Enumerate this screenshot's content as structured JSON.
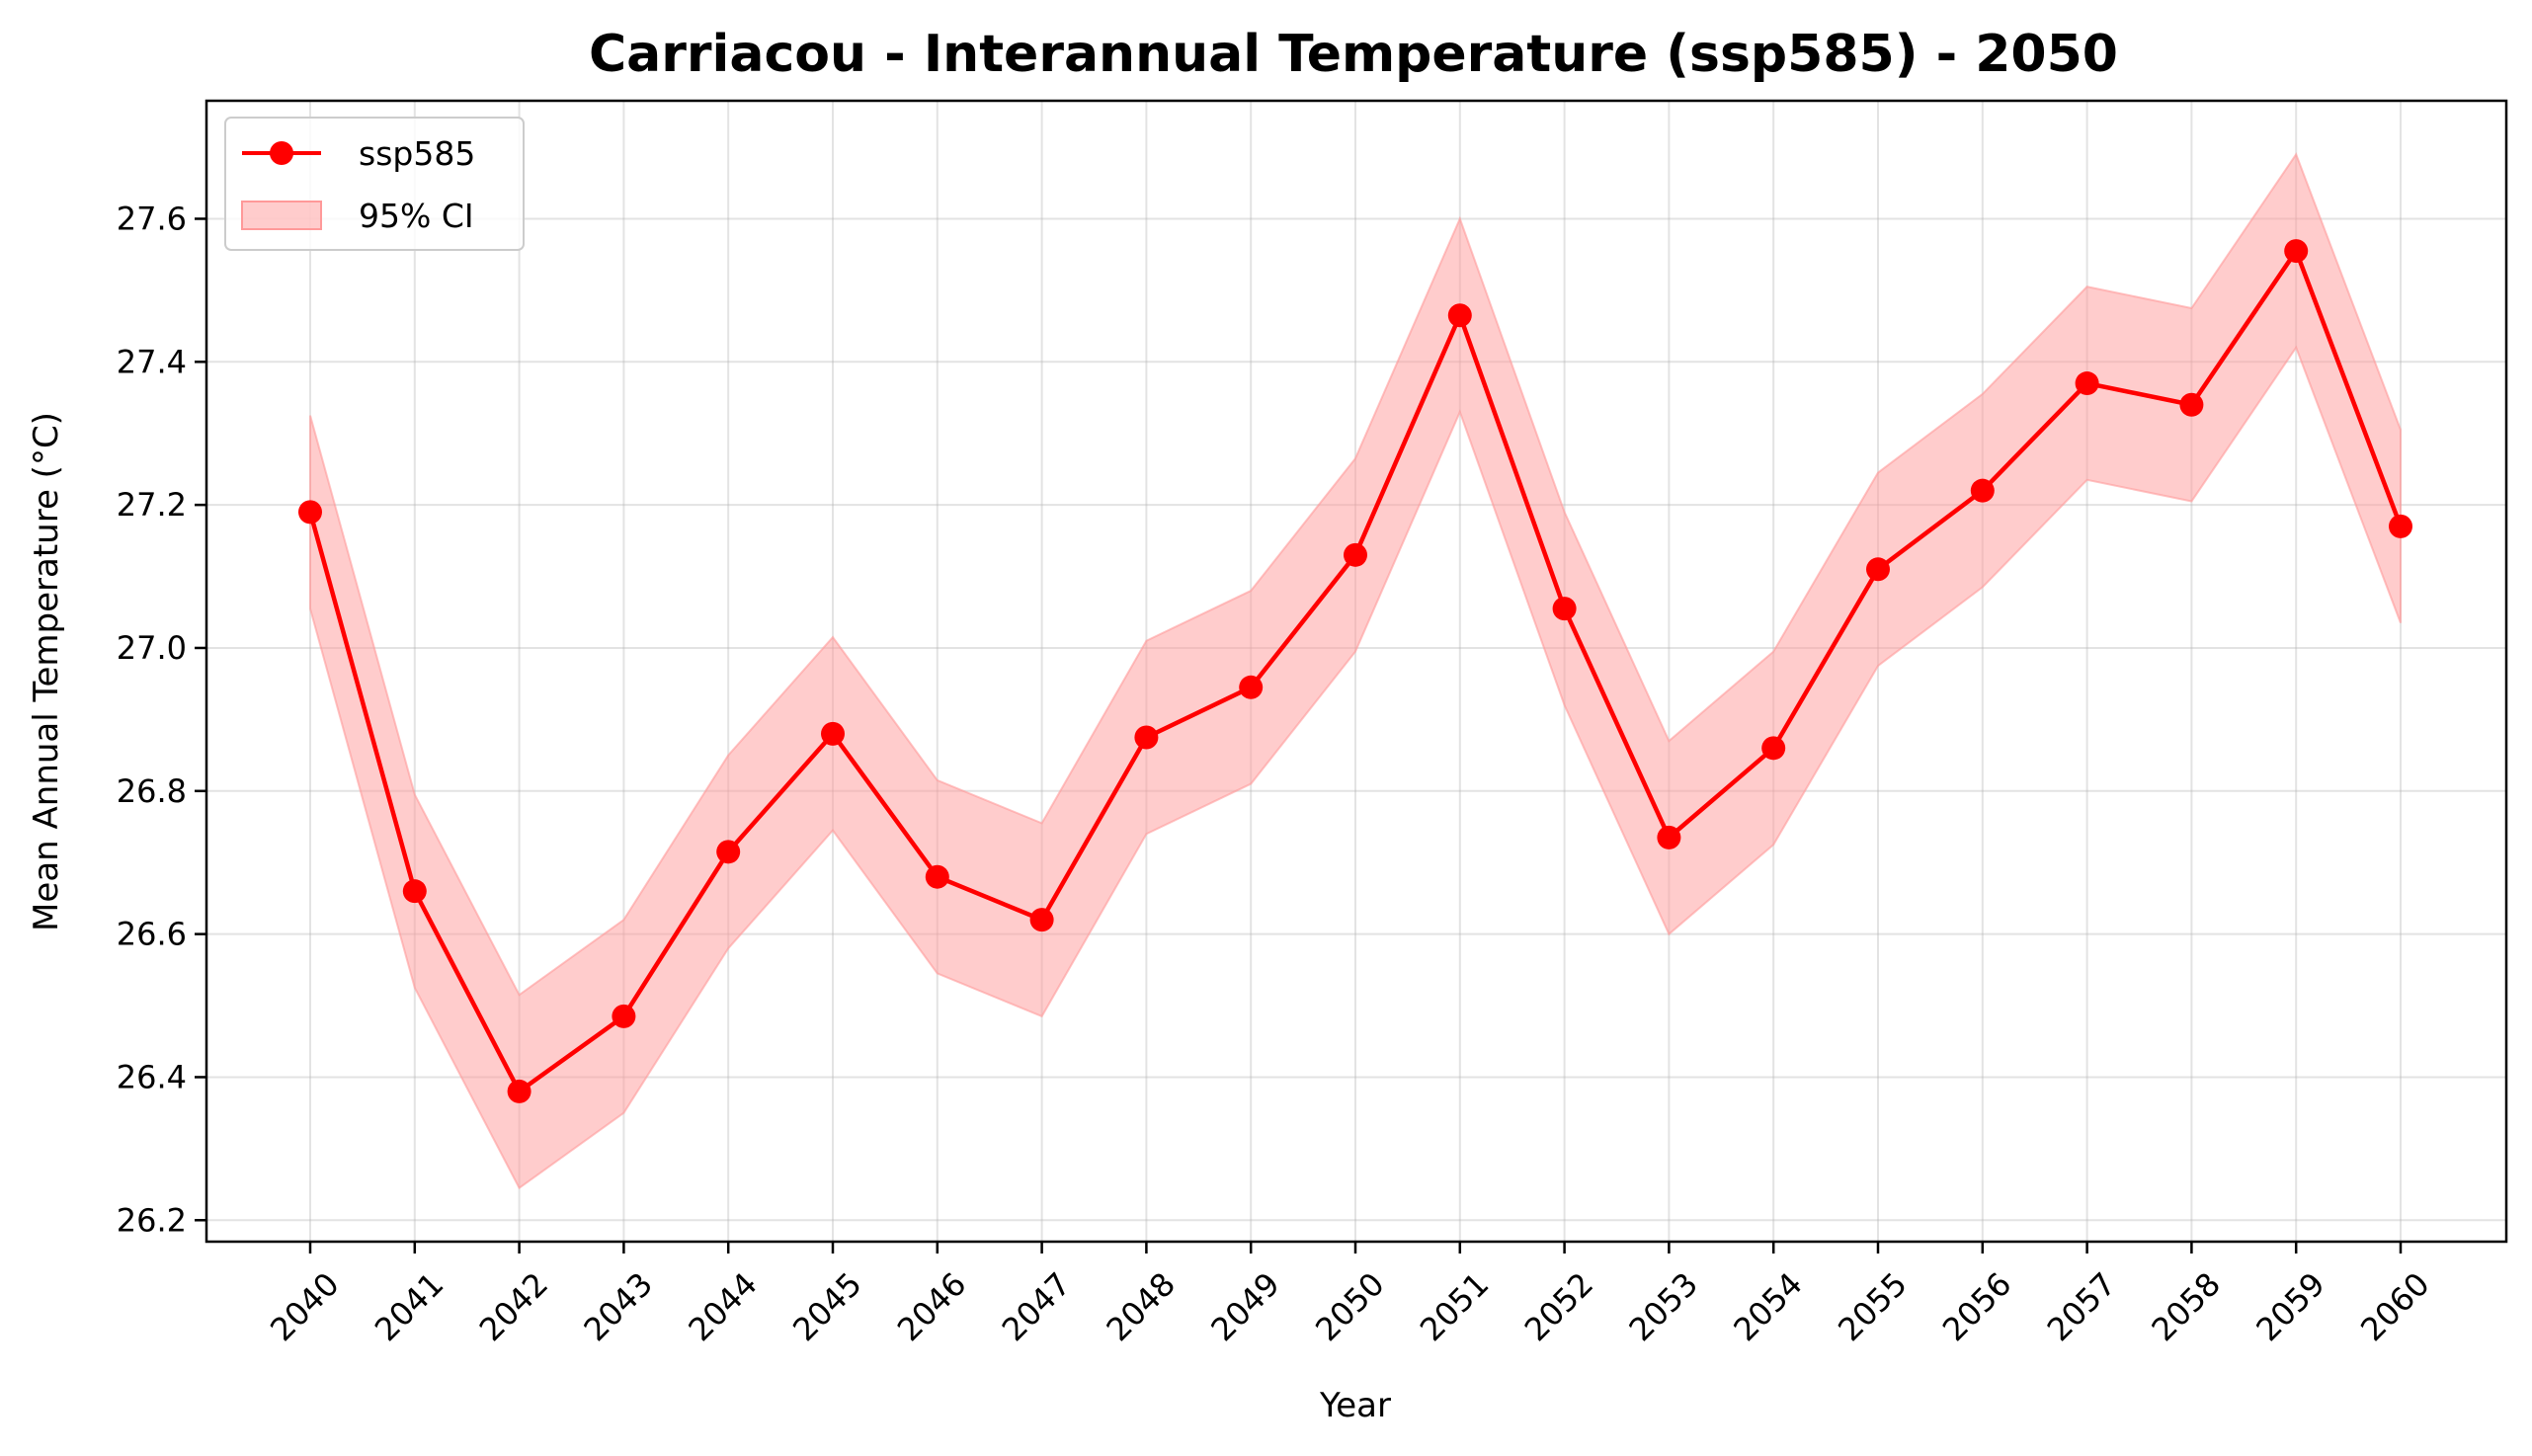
{
  "chart_data": {
    "type": "line",
    "title": "Carriacou - Interannual Temperature (ssp585) - 2050",
    "xlabel": "Year",
    "ylabel": "Mean Annual Temperature (°C)",
    "x": [
      "2040",
      "2041",
      "2042",
      "2043",
      "2044",
      "2045",
      "2046",
      "2047",
      "2048",
      "2049",
      "2050",
      "2051",
      "2052",
      "2053",
      "2054",
      "2055",
      "2056",
      "2057",
      "2058",
      "2059",
      "2060"
    ],
    "series": [
      {
        "name": "ssp585",
        "color": "#ff0000",
        "values": [
          27.19,
          26.66,
          26.38,
          26.485,
          26.715,
          26.88,
          26.68,
          26.62,
          26.875,
          26.945,
          27.13,
          27.465,
          27.055,
          26.735,
          26.86,
          27.11,
          27.22,
          27.37,
          27.34,
          27.555,
          27.17
        ],
        "ci_lower": [
          27.055,
          26.525,
          26.245,
          26.35,
          26.58,
          26.745,
          26.545,
          26.485,
          26.74,
          26.81,
          26.995,
          27.33,
          26.92,
          26.6,
          26.725,
          26.975,
          27.085,
          27.235,
          27.205,
          27.42,
          27.035
        ],
        "ci_upper": [
          27.325,
          26.795,
          26.515,
          26.62,
          26.85,
          27.015,
          26.815,
          26.755,
          27.01,
          27.08,
          27.265,
          27.6,
          27.19,
          26.87,
          26.995,
          27.245,
          27.355,
          27.505,
          27.475,
          27.69,
          27.305
        ]
      }
    ],
    "ci_label": "95% CI",
    "ci_color": "#ff9999",
    "ylim": [
      26.17,
      27.765
    ],
    "yticks": [
      "26.2",
      "26.4",
      "26.6",
      "26.8",
      "27.0",
      "27.2",
      "27.4",
      "27.6"
    ],
    "grid": true,
    "legend": "top-left"
  }
}
